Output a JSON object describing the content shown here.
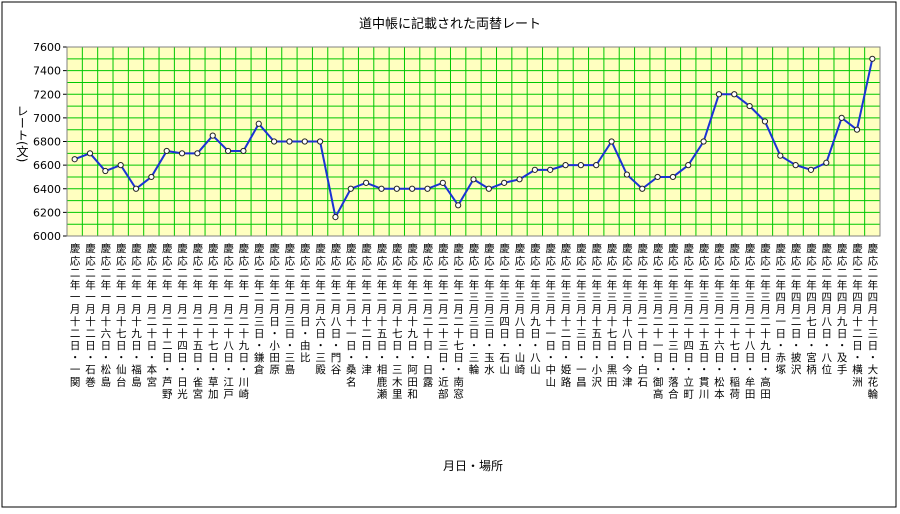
{
  "chart_data": {
    "type": "line",
    "title": "道中帳に記載された両替レート",
    "x_label": "月日・場所",
    "y_label": "レート(文)",
    "categories": [
      "慶応二年一月十二日・一関",
      "慶応二年一月十二日・石巻",
      "慶応二年一月十六日・松島",
      "慶応二年一月十七日・仙台",
      "慶応二年一月十九日・福島",
      "慶応二年一月二十日・本宮",
      "慶応二年一月二十二日・芦野",
      "慶応二年一月二十四日・日光",
      "慶応二年一月二十五日・雀宮",
      "慶応二年一月二十七日・草加",
      "慶応二年一月二十八日・江戸",
      "慶応二年一月二十九日・川崎",
      "慶応二年二月三日・鎌倉",
      "慶応二年二月日・小田原",
      "慶応二年二月三日・三島",
      "慶応二年二月日・由比",
      "慶応二年二月六日・三殿",
      "慶応二年二月八日・門谷",
      "慶応二年二月十一日・桑名",
      "慶応二年二月十二日・津",
      "慶応二年二月十五日・相鹿瀬",
      "慶応二年二月十七日・三木里",
      "慶応二年二月十九日・阿田和",
      "慶応二年二月二十日・日露",
      "慶応二年二月二十三日・近部",
      "慶応二年二月二十七日・南窓",
      "慶応二年三月三日・三輪",
      "慶応二年三月三日・玉水",
      "慶応二年三月四日・石山",
      "慶応二年三月八日・山崎",
      "慶応二年三月九日・八山",
      "慶応二年三月十一日・中山",
      "慶応二年三月十二日・姫路",
      "慶応二年三月十三日・一昌",
      "慶応二年三月十五日・小沢",
      "慶応二年三月十七日・黒田",
      "慶応二年三月十八日・今津",
      "慶応二年三月二十日・白石",
      "慶応二年三月二十一日・御高",
      "慶応二年三月二十三日・落合",
      "慶応二年三月二十四日・立町",
      "慶応二年三月二十五日・貫川",
      "慶応二年三月二十六日・松本",
      "慶応二年三月二十七日・稲荷",
      "慶応二年三月二十八日・牟田",
      "慶応二年三月二十九日・高田",
      "慶応二年四月一日・赤塚",
      "慶応二年四月二日・披沢",
      "慶応二年四月七日・宮柄",
      "慶応二年四月八日・八位",
      "慶応二年四月九日・及手",
      "慶応二年四月十二日・横洲",
      "慶応二年四月十三日・大花輪"
    ],
    "series": [
      {
        "name": "レート",
        "color": "#1c32d4",
        "values": [
          6650,
          6700,
          6550,
          6600,
          6400,
          6500,
          6720,
          6700,
          6700,
          6850,
          6720,
          6720,
          6950,
          6800,
          6800,
          6800,
          6800,
          6160,
          6400,
          6450,
          6400,
          6400,
          6400,
          6400,
          6450,
          6260,
          6480,
          6400,
          6450,
          6480,
          6560,
          6560,
          6600,
          6600,
          6600,
          6800,
          6520,
          6400,
          6500,
          6500,
          6600,
          6800,
          7200,
          7200,
          7100,
          6970,
          6680,
          6600,
          6560,
          6620,
          7000,
          6900,
          7500
        ]
      }
    ],
    "ylim": [
      6000,
      7600
    ],
    "yticks": [
      6000,
      6200,
      6400,
      6600,
      6800,
      7000,
      7200,
      7400,
      7600
    ],
    "minor_yticks": [
      6100,
      6300,
      6500,
      6700,
      6900,
      7100,
      7300,
      7500
    ],
    "grid": true,
    "grid_color": "#00c800",
    "plot_background": "#ffffc0"
  }
}
